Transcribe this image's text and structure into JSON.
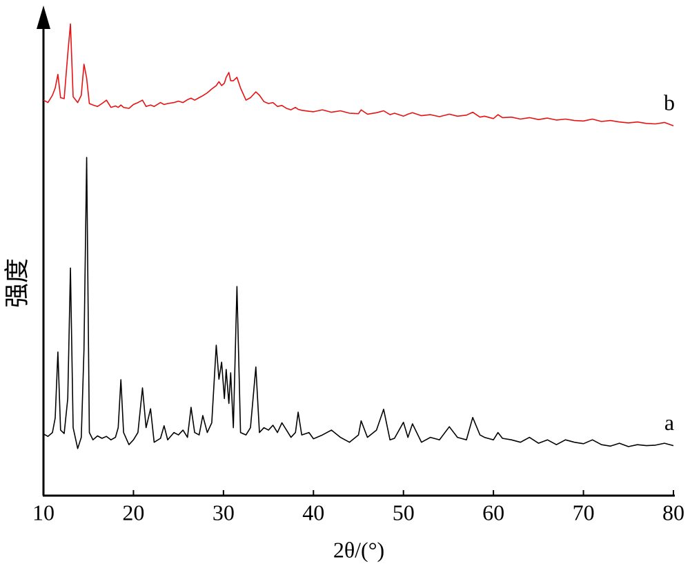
{
  "chart_data": {
    "type": "line",
    "xlabel": "2θ/(°)",
    "ylabel": "强度",
    "x": [
      10,
      10.5,
      11,
      11.3,
      11.6,
      11.9,
      12.3,
      12.7,
      13.0,
      13.3,
      13.8,
      14.2,
      14.5,
      14.8,
      15.1,
      15.5,
      16,
      16.5,
      17,
      17.5,
      18,
      18.3,
      18.6,
      18.9,
      19.5,
      20,
      20.5,
      21.0,
      21.4,
      21.9,
      22.3,
      23,
      23.4,
      23.8,
      24.5,
      25,
      25.5,
      26,
      26.4,
      26.8,
      27.3,
      27.7,
      28.2,
      28.7,
      29.2,
      29.5,
      29.8,
      30.1,
      30.3,
      30.6,
      30.8,
      31.1,
      31.5,
      31.9,
      32.5,
      33,
      33.6,
      34,
      34.5,
      35,
      35.5,
      36,
      36.5,
      37,
      37.5,
      38,
      38.3,
      38.7,
      39.5,
      40,
      41,
      42,
      43,
      44,
      45,
      45.3,
      46,
      47,
      47.8,
      48.5,
      49,
      50,
      50.5,
      51,
      52,
      53,
      54,
      55.1,
      56,
      57,
      57.7,
      58.5,
      59,
      60,
      60.5,
      61,
      62,
      63,
      64,
      65,
      66,
      67,
      68,
      69,
      70,
      71,
      72,
      73,
      74,
      75,
      76,
      77,
      78,
      79,
      80
    ],
    "series": [
      {
        "name": "a",
        "color": "#000000",
        "values": [
          12.7,
          12.2,
          13.0,
          16,
          29.6,
          13.5,
          12.8,
          20,
          46.9,
          14,
          9.7,
          12,
          30,
          69.7,
          13,
          11.5,
          12.3,
          11.8,
          12.2,
          11.5,
          12,
          14,
          23.9,
          13,
          10.5,
          11.5,
          13,
          22.2,
          14,
          17.9,
          11,
          11.8,
          14.4,
          11.5,
          13,
          12.5,
          13.5,
          12,
          18.2,
          13,
          12.5,
          16.5,
          13,
          15,
          31,
          24,
          27.5,
          20,
          26,
          19,
          25.3,
          14,
          43.1,
          13,
          12.5,
          14,
          26.5,
          13,
          14,
          13.5,
          14.5,
          13,
          15,
          13.5,
          12,
          13,
          17.2,
          12.5,
          13,
          11.7,
          12.5,
          13.5,
          12,
          11,
          12.5,
          15.4,
          12,
          13.5,
          17.8,
          11.5,
          11.8,
          15.1,
          12,
          14.8,
          11,
          12,
          11.5,
          14.2,
          12,
          11.5,
          16.1,
          12.5,
          12,
          11.5,
          13,
          11.8,
          11.5,
          11,
          12,
          10.8,
          11.5,
          10.5,
          11.5,
          11,
          10.7,
          11.5,
          10.5,
          10.2,
          10.8,
          10.1,
          10.5,
          10.3,
          10.4,
          10.8,
          10.3
        ]
      },
      {
        "name": "b",
        "color": "#e81010",
        "values": [
          81.5,
          81.0,
          82.5,
          84,
          86.8,
          82,
          81.8,
          91,
          97.2,
          82.2,
          81,
          82.5,
          88.9,
          86,
          80.8,
          80.5,
          80.2,
          80.8,
          81.5,
          80,
          80.3,
          80,
          80.5,
          80,
          79.8,
          80.6,
          81,
          81.5,
          80.2,
          80.5,
          80.2,
          81,
          80.6,
          80.8,
          81,
          81.3,
          81,
          81.6,
          81.9,
          81.5,
          82,
          82.4,
          83,
          83.8,
          84.5,
          85.3,
          84.5,
          85,
          86.2,
          87.2,
          85.5,
          85.5,
          86.2,
          84,
          81.5,
          82,
          83.2,
          82.5,
          81.2,
          80.8,
          81,
          80.2,
          80.4,
          79.8,
          79.5,
          80,
          79.6,
          79.4,
          79.2,
          79.1,
          79.5,
          79,
          79.3,
          78.8,
          78.7,
          79.5,
          78.6,
          78.9,
          79.3,
          78.5,
          78.8,
          78.2,
          78.6,
          78.9,
          78.3,
          78.5,
          78.1,
          78.6,
          78.2,
          78.4,
          79,
          78,
          78.2,
          77.7,
          78.5,
          77.9,
          78,
          77.6,
          77.9,
          77.5,
          77.8,
          77.4,
          77.6,
          77.3,
          77.2,
          77.6,
          77.1,
          77.3,
          77,
          76.8,
          77,
          76.7,
          76.6,
          76.9,
          76.2
        ]
      }
    ],
    "xlim": [
      10,
      80
    ],
    "xticks": [
      10,
      20,
      30,
      40,
      50,
      60,
      70,
      80
    ],
    "ylim": [
      0,
      100
    ]
  }
}
